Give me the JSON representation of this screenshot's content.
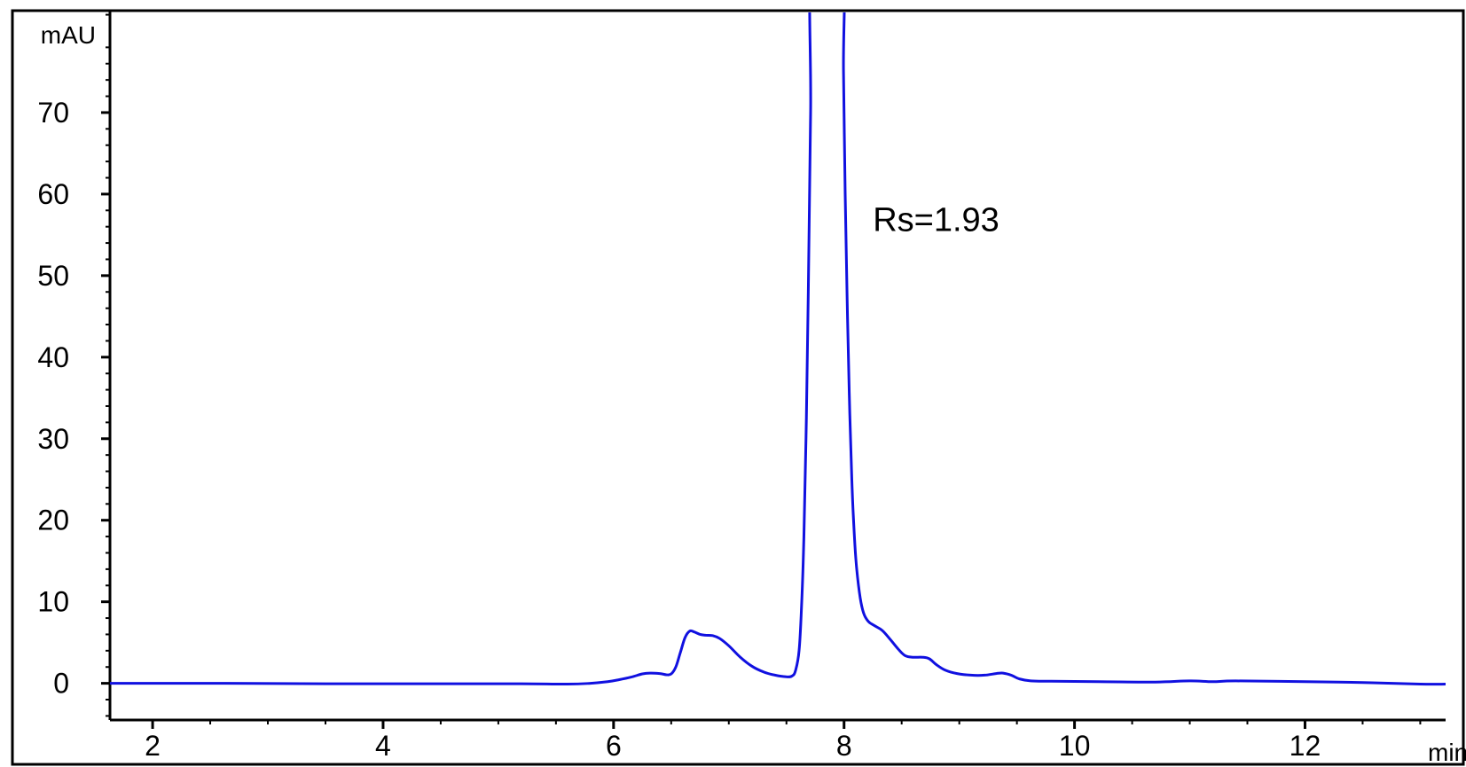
{
  "chart_data": {
    "type": "line",
    "xlabel": "min",
    "ylabel": "mAU",
    "xlim": [
      1.63,
      13.22
    ],
    "ylim": [
      -4.5,
      82.5
    ],
    "x_ticks": [
      2,
      4,
      6,
      8,
      10,
      12
    ],
    "y_ticks": [
      0,
      10,
      20,
      30,
      40,
      50,
      60,
      70
    ],
    "x_tick_labels": [
      "2",
      "4",
      "6",
      "8",
      "10",
      "12"
    ],
    "y_tick_labels": [
      "0",
      "10",
      "20",
      "30",
      "40",
      "50",
      "60",
      "70"
    ],
    "grid": false,
    "legend": "none",
    "line_color": "#1010e0",
    "annotations": [
      {
        "text": "Rs=1.93",
        "x": 8.25,
        "y": 55.5
      }
    ],
    "series": [
      {
        "points": [
          [
            1.63,
            0.0
          ],
          [
            2.5,
            0.0
          ],
          [
            3.5,
            -0.05
          ],
          [
            4.5,
            -0.05
          ],
          [
            5.2,
            -0.05
          ],
          [
            5.6,
            -0.1
          ],
          [
            5.8,
            0.0
          ],
          [
            5.95,
            0.2
          ],
          [
            6.05,
            0.45
          ],
          [
            6.15,
            0.75
          ],
          [
            6.25,
            1.15
          ],
          [
            6.32,
            1.25
          ],
          [
            6.4,
            1.2
          ],
          [
            6.46,
            1.05
          ],
          [
            6.5,
            1.15
          ],
          [
            6.54,
            2.0
          ],
          [
            6.58,
            3.8
          ],
          [
            6.62,
            5.6
          ],
          [
            6.66,
            6.4
          ],
          [
            6.7,
            6.3
          ],
          [
            6.75,
            6.0
          ],
          [
            6.8,
            5.9
          ],
          [
            6.86,
            5.85
          ],
          [
            6.92,
            5.5
          ],
          [
            7.0,
            4.6
          ],
          [
            7.1,
            3.2
          ],
          [
            7.2,
            2.1
          ],
          [
            7.3,
            1.4
          ],
          [
            7.4,
            1.0
          ],
          [
            7.5,
            0.8
          ],
          [
            7.55,
            0.9
          ],
          [
            7.58,
            1.6
          ],
          [
            7.61,
            4.0
          ],
          [
            7.63,
            9.0
          ],
          [
            7.65,
            17.0
          ],
          [
            7.67,
            30.0
          ],
          [
            7.69,
            48.0
          ],
          [
            7.71,
            70.0
          ],
          [
            7.725,
            90.0
          ],
          [
            7.98,
            90.0
          ],
          [
            7.995,
            75.0
          ],
          [
            8.01,
            60.0
          ],
          [
            8.03,
            45.0
          ],
          [
            8.05,
            33.0
          ],
          [
            8.07,
            24.0
          ],
          [
            8.09,
            18.0
          ],
          [
            8.11,
            14.0
          ],
          [
            8.14,
            10.5
          ],
          [
            8.17,
            8.6
          ],
          [
            8.21,
            7.6
          ],
          [
            8.26,
            7.1
          ],
          [
            8.33,
            6.5
          ],
          [
            8.4,
            5.4
          ],
          [
            8.47,
            4.2
          ],
          [
            8.53,
            3.4
          ],
          [
            8.6,
            3.2
          ],
          [
            8.68,
            3.2
          ],
          [
            8.74,
            3.0
          ],
          [
            8.8,
            2.3
          ],
          [
            8.88,
            1.6
          ],
          [
            8.98,
            1.2
          ],
          [
            9.1,
            1.0
          ],
          [
            9.22,
            1.0
          ],
          [
            9.32,
            1.2
          ],
          [
            9.38,
            1.25
          ],
          [
            9.45,
            1.0
          ],
          [
            9.52,
            0.55
          ],
          [
            9.62,
            0.3
          ],
          [
            9.8,
            0.25
          ],
          [
            10.2,
            0.2
          ],
          [
            10.7,
            0.15
          ],
          [
            11.0,
            0.3
          ],
          [
            11.2,
            0.2
          ],
          [
            11.4,
            0.3
          ],
          [
            12.0,
            0.2
          ],
          [
            12.5,
            0.1
          ],
          [
            13.0,
            -0.1
          ],
          [
            13.22,
            -0.1
          ]
        ]
      }
    ]
  }
}
